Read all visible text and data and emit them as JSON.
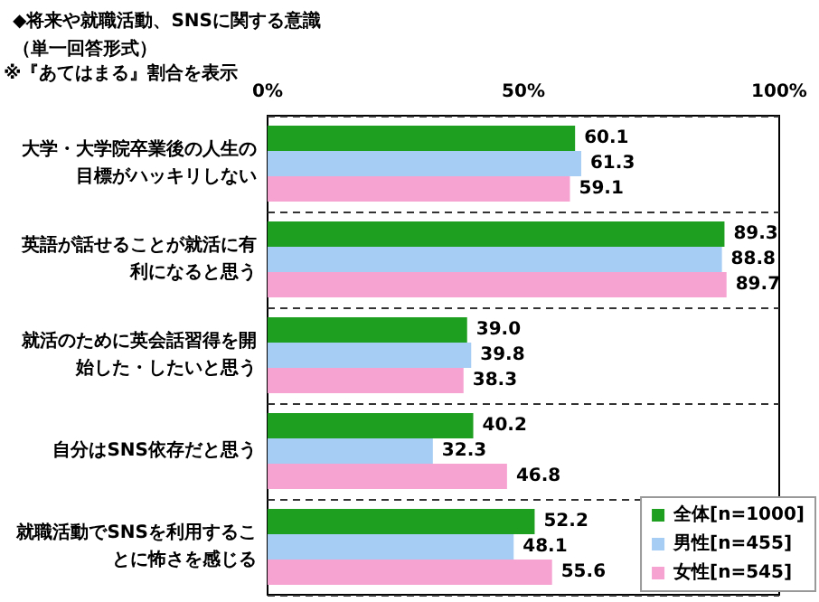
{
  "chart_data": {
    "type": "bar",
    "orientation": "horizontal",
    "title": "◆将来や就職活動、SNSに関する意識",
    "subtitle": "（単一回答形式）",
    "annotations": [
      "※『あてはまる』割合を表示"
    ],
    "categories": [
      "大学・大学院卒業後の人生の目標がハッキリしない",
      "英語が話せることが就活に有利になると思う",
      "就活のために英会話習得を開始した・したいと思う",
      "自分はSNS依存だと思う",
      "就職活動でSNSを利用することに怖さを感じる"
    ],
    "series": [
      {
        "name": "全体[n=1000]",
        "color": "#1f9f1f",
        "values": [
          60.1,
          89.3,
          39.0,
          40.2,
          52.2
        ],
        "value_labels": [
          "60.1",
          "89.3",
          "39.0",
          "40.2",
          "52.2"
        ]
      },
      {
        "name": "男性[n=455]",
        "color": "#a6cdf4",
        "values": [
          61.3,
          88.8,
          39.8,
          32.3,
          48.1
        ],
        "value_labels": [
          "61.3",
          "88.8",
          "39.8",
          "32.3",
          "48.1"
        ]
      },
      {
        "name": "女性[n=545]",
        "color": "#f6a3d2",
        "values": [
          59.1,
          89.7,
          38.3,
          46.8,
          55.6
        ],
        "value_labels": [
          "59.1",
          "89.7",
          "38.3",
          "46.8",
          "55.6"
        ]
      }
    ],
    "xlim": [
      0,
      100
    ],
    "xticks": [
      {
        "value": 0,
        "label": "0%"
      },
      {
        "value": 50,
        "label": "50%"
      },
      {
        "value": 100,
        "label": "100%"
      }
    ],
    "grid": "y",
    "legend": "bottom right"
  }
}
